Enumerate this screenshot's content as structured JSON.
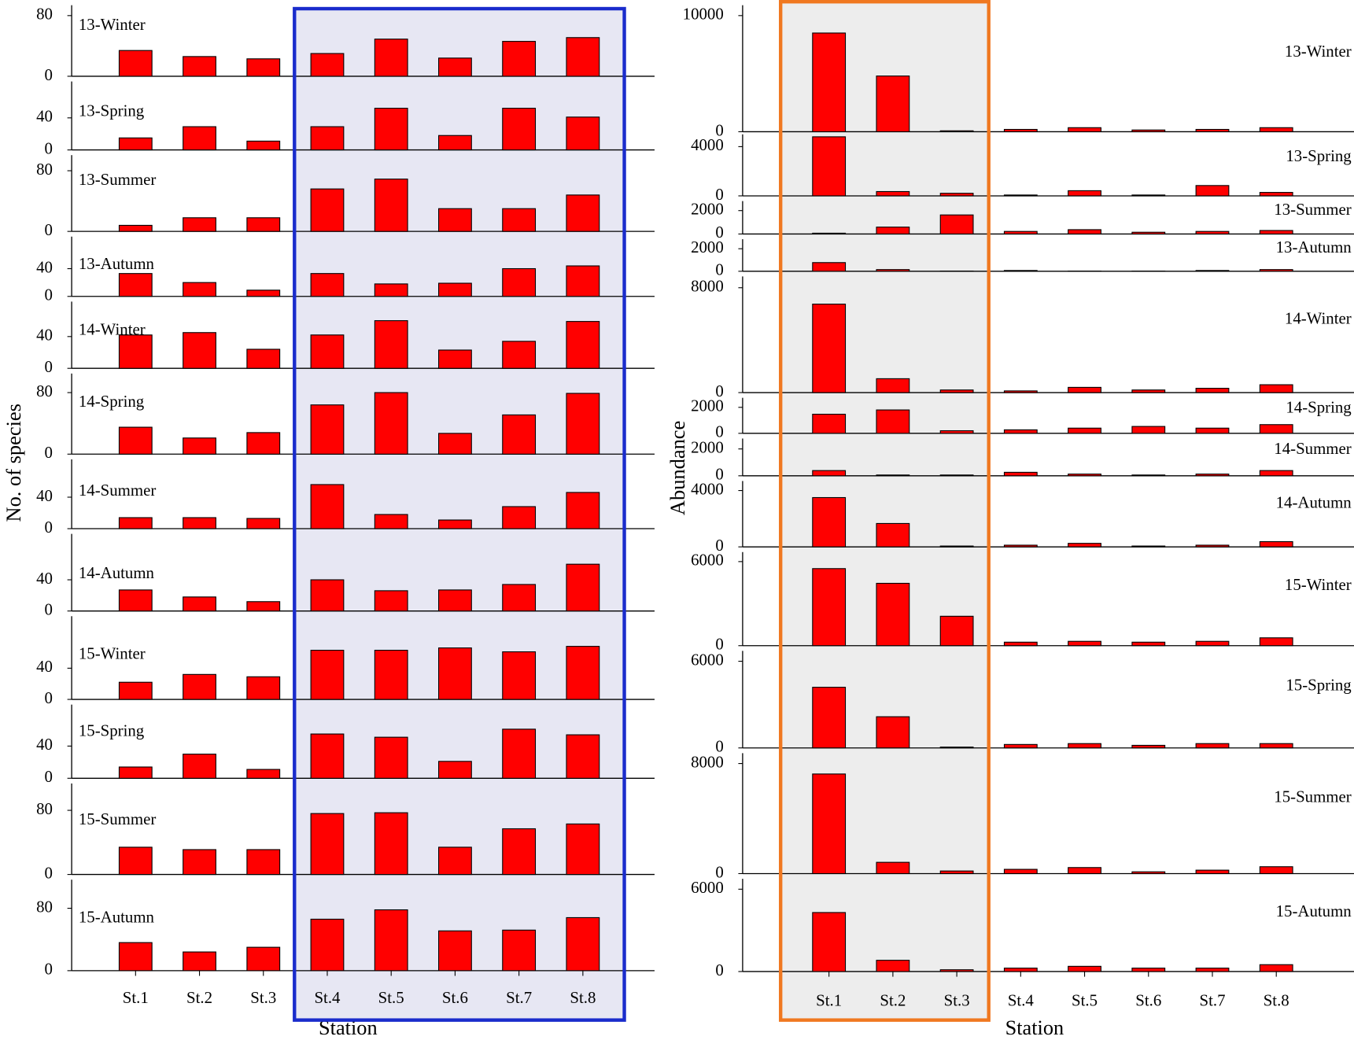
{
  "chart_data": [
    {
      "type": "bar",
      "ylabel": "No. of species",
      "xlabel": "Station",
      "color": "#ff0000",
      "categories": [
        "St.1",
        "St.2",
        "St.3",
        "St.4",
        "St.5",
        "St.6",
        "St.7",
        "St.8"
      ],
      "panels": [
        {
          "title": "13-Winter",
          "values": [
            34,
            26,
            23,
            30,
            49,
            24,
            46,
            51
          ],
          "ylim": [
            0,
            80
          ],
          "yticks": [
            0,
            80
          ]
        },
        {
          "title": "13-Spring",
          "values": [
            15,
            29,
            11,
            29,
            52,
            18,
            52,
            41
          ],
          "ylim": [
            0,
            60
          ],
          "yticks": [
            0,
            40
          ]
        },
        {
          "title": "13-Summer",
          "values": [
            8,
            18,
            18,
            56,
            69,
            30,
            30,
            48
          ],
          "ylim": [
            0,
            80
          ],
          "yticks": [
            0,
            80
          ]
        },
        {
          "title": "13-Autumn",
          "values": [
            33,
            20,
            9,
            33,
            18,
            19,
            40,
            44
          ],
          "ylim": [
            0,
            60
          ],
          "yticks": [
            0,
            40
          ]
        },
        {
          "title": "14-Winter",
          "values": [
            42,
            45,
            24,
            42,
            60,
            23,
            34,
            59
          ],
          "ylim": [
            0,
            60
          ],
          "yticks": [
            0,
            40
          ]
        },
        {
          "title": "14-Spring",
          "values": [
            35,
            21,
            28,
            64,
            80,
            27,
            51,
            79
          ],
          "ylim": [
            0,
            80
          ],
          "yticks": [
            0,
            80
          ]
        },
        {
          "title": "14-Summer",
          "values": [
            14,
            14,
            13,
            56,
            18,
            11,
            28,
            46
          ],
          "ylim": [
            0,
            60
          ],
          "yticks": [
            0,
            40
          ]
        },
        {
          "title": "14-Autumn",
          "values": [
            27,
            18,
            12,
            40,
            26,
            27,
            34,
            60
          ],
          "ylim": [
            0,
            60
          ],
          "yticks": [
            0,
            40
          ]
        },
        {
          "title": "15-Winter",
          "values": [
            22,
            32,
            29,
            63,
            63,
            66,
            61,
            68
          ],
          "ylim": [
            0,
            70
          ],
          "yticks": [
            0,
            40
          ]
        },
        {
          "title": "15-Spring",
          "values": [
            14,
            30,
            11,
            55,
            51,
            21,
            61,
            54
          ],
          "ylim": [
            0,
            70
          ],
          "yticks": [
            0,
            40
          ]
        },
        {
          "title": "15-Summer",
          "values": [
            34,
            31,
            31,
            76,
            77,
            34,
            57,
            63
          ],
          "ylim": [
            0,
            80
          ],
          "yticks": [
            0,
            80
          ]
        },
        {
          "title": "15-Autumn",
          "values": [
            36,
            24,
            30,
            66,
            78,
            51,
            52,
            68
          ],
          "ylim": [
            0,
            80
          ],
          "yticks": [
            0,
            80
          ]
        }
      ]
    },
    {
      "type": "bar",
      "ylabel": "Abundance",
      "xlabel": "Station",
      "color": "#ff0000",
      "categories": [
        "St.1",
        "St.2",
        "St.3",
        "St.4",
        "St.5",
        "St.6",
        "St.7",
        "St.8"
      ],
      "panels": [
        {
          "title": "13-Winter",
          "values": [
            8500,
            4800,
            80,
            200,
            350,
            150,
            200,
            350
          ],
          "ylim": [
            0,
            10000
          ],
          "yticks": [
            0,
            10000
          ]
        },
        {
          "title": "13-Spring",
          "values": [
            4800,
            350,
            210,
            70,
            420,
            70,
            840,
            280
          ],
          "ylim": [
            0,
            5000
          ],
          "yticks": [
            0,
            4000
          ]
        },
        {
          "title": "13-Summer",
          "values": [
            70,
            590,
            1630,
            220,
            370,
            150,
            220,
            300
          ],
          "ylim": [
            0,
            2000
          ],
          "yticks": [
            0,
            2000
          ]
        },
        {
          "title": "13-Autumn",
          "values": [
            770,
            150,
            20,
            70,
            20,
            20,
            70,
            150
          ],
          "ylim": [
            0,
            2000
          ],
          "yticks": [
            0,
            2000
          ]
        },
        {
          "title": "14-Winter",
          "values": [
            6750,
            1060,
            200,
            130,
            400,
            200,
            330,
            600
          ],
          "ylim": [
            0,
            8000
          ],
          "yticks": [
            0,
            8000
          ]
        },
        {
          "title": "14-Spring",
          "values": [
            1470,
            1800,
            200,
            270,
            400,
            530,
            400,
            670
          ],
          "ylim": [
            0,
            2000
          ],
          "yticks": [
            0,
            2000
          ]
        },
        {
          "title": "14-Summer",
          "values": [
            390,
            60,
            60,
            260,
            130,
            60,
            130,
            390
          ],
          "ylim": [
            0,
            2000
          ],
          "yticks": [
            0,
            2000
          ]
        },
        {
          "title": "14-Autumn",
          "values": [
            3500,
            1660,
            60,
            120,
            250,
            60,
            120,
            370
          ],
          "ylim": [
            0,
            4000
          ],
          "yticks": [
            0,
            4000
          ]
        },
        {
          "title": "15-Winter",
          "values": [
            5500,
            4450,
            2100,
            250,
            310,
            250,
            310,
            560
          ],
          "ylim": [
            0,
            6000
          ],
          "yticks": [
            0,
            6000
          ]
        },
        {
          "title": "15-Spring",
          "values": [
            4200,
            2160,
            60,
            240,
            300,
            180,
            300,
            300
          ],
          "ylim": [
            0,
            6000
          ],
          "yticks": [
            0,
            6000
          ]
        },
        {
          "title": "15-Summer",
          "values": [
            7240,
            820,
            190,
            310,
            440,
            130,
            250,
            500
          ],
          "ylim": [
            0,
            8000
          ],
          "yticks": [
            0,
            8000
          ]
        },
        {
          "title": "15-Autumn",
          "values": [
            4300,
            820,
            130,
            250,
            380,
            250,
            250,
            500
          ],
          "ylim": [
            0,
            6000
          ],
          "yticks": [
            0,
            6000
          ]
        }
      ]
    }
  ]
}
